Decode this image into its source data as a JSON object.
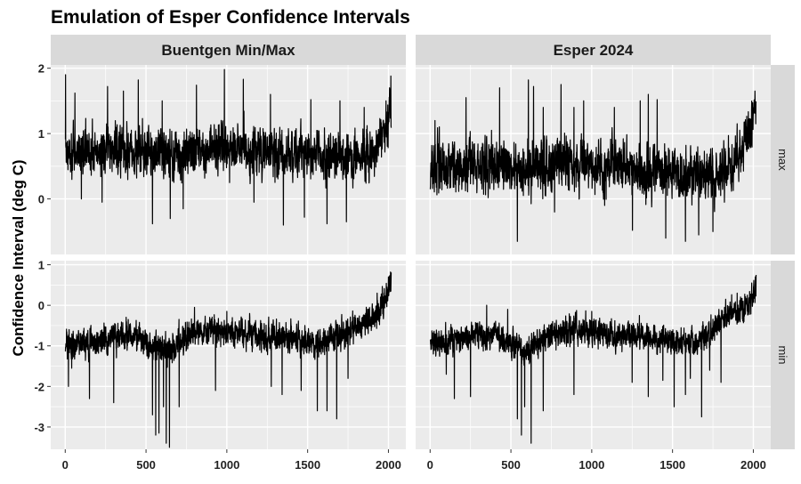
{
  "chart_data": {
    "type": "line",
    "title": "Emulation of Esper Confidence Intervals",
    "xlabel": "",
    "ylabel": "Confidence Interval (deg C)",
    "facet_columns": [
      "Buentgen Min/Max",
      "Esper 2024"
    ],
    "facet_rows": [
      "max",
      "min"
    ],
    "grid": true,
    "colors": {
      "panel": "#ebebeb",
      "grid": "#ffffff",
      "strip": "#d9d9d9",
      "line": "#000000"
    },
    "x_range": [
      1,
      2017
    ],
    "x_ticks": [
      0,
      500,
      1000,
      1500,
      2000
    ],
    "rows": [
      {
        "strip": "max",
        "ylim": [
          -0.85,
          2.05
        ],
        "y_ticks": [
          0,
          1,
          2
        ]
      },
      {
        "strip": "min",
        "ylim": [
          -3.55,
          1.1
        ],
        "y_ticks": [
          -3,
          -2,
          -1,
          0,
          1
        ]
      }
    ],
    "panels": [
      {
        "column": "Buentgen Min/Max",
        "row": "max",
        "mean": [
          [
            1,
            0.75
          ],
          [
            150,
            0.72
          ],
          [
            300,
            0.8
          ],
          [
            500,
            0.72
          ],
          [
            700,
            0.68
          ],
          [
            900,
            0.74
          ],
          [
            1000,
            0.82
          ],
          [
            1200,
            0.76
          ],
          [
            1400,
            0.68
          ],
          [
            1600,
            0.62
          ],
          [
            1800,
            0.65
          ],
          [
            1900,
            0.7
          ],
          [
            1950,
            0.82
          ],
          [
            2000,
            1.15
          ],
          [
            2017,
            1.3
          ]
        ],
        "spread": 0.26,
        "extremes": [
          [
            2,
            1.9
          ],
          [
            60,
            1.62
          ],
          [
            100,
            0.0
          ],
          [
            228,
            -0.05
          ],
          [
            262,
            1.72
          ],
          [
            360,
            1.65
          ],
          [
            452,
            1.82
          ],
          [
            540,
            -0.38
          ],
          [
            600,
            1.5
          ],
          [
            650,
            -0.3
          ],
          [
            730,
            -0.15
          ],
          [
            812,
            1.74
          ],
          [
            985,
            1.98
          ],
          [
            1102,
            1.83
          ],
          [
            1168,
            -0.05
          ],
          [
            1270,
            1.6
          ],
          [
            1350,
            -0.4
          ],
          [
            1480,
            -0.28
          ],
          [
            1520,
            1.52
          ],
          [
            1620,
            -0.38
          ],
          [
            1700,
            1.5
          ],
          [
            1740,
            -0.35
          ],
          [
            1850,
            1.4
          ],
          [
            1985,
            1.5
          ],
          [
            2015,
            1.88
          ]
        ]
      },
      {
        "column": "Esper 2024",
        "row": "max",
        "mean": [
          [
            1,
            0.5
          ],
          [
            150,
            0.52
          ],
          [
            300,
            0.5
          ],
          [
            500,
            0.48
          ],
          [
            620,
            0.46
          ],
          [
            800,
            0.55
          ],
          [
            1000,
            0.5
          ],
          [
            1200,
            0.46
          ],
          [
            1400,
            0.42
          ],
          [
            1600,
            0.38
          ],
          [
            1800,
            0.33
          ],
          [
            1870,
            0.45
          ],
          [
            1930,
            0.72
          ],
          [
            1980,
            1.05
          ],
          [
            2017,
            1.45
          ]
        ],
        "spread": 0.28,
        "extremes": [
          [
            2,
            0.2
          ],
          [
            30,
            1.2
          ],
          [
            222,
            1.55
          ],
          [
            380,
            1.05
          ],
          [
            430,
            1.7
          ],
          [
            540,
            -0.65
          ],
          [
            608,
            1.82
          ],
          [
            640,
            1.72
          ],
          [
            700,
            1.4
          ],
          [
            770,
            -0.2
          ],
          [
            810,
            1.75
          ],
          [
            890,
            1.4
          ],
          [
            950,
            1.5
          ],
          [
            1080,
            -0.1
          ],
          [
            1140,
            1.4
          ],
          [
            1252,
            -0.48
          ],
          [
            1300,
            1.5
          ],
          [
            1350,
            1.6
          ],
          [
            1405,
            1.52
          ],
          [
            1458,
            -0.6
          ],
          [
            1580,
            -0.65
          ],
          [
            1662,
            -0.55
          ],
          [
            1750,
            -0.5
          ],
          [
            1900,
            1.15
          ],
          [
            2010,
            1.65
          ]
        ]
      },
      {
        "column": "Buentgen Min/Max",
        "row": "min",
        "mean": [
          [
            1,
            -1.0
          ],
          [
            50,
            -0.95
          ],
          [
            150,
            -0.9
          ],
          [
            250,
            -0.8
          ],
          [
            350,
            -0.75
          ],
          [
            450,
            -0.85
          ],
          [
            520,
            -0.95
          ],
          [
            560,
            -1.1
          ],
          [
            640,
            -1.1
          ],
          [
            720,
            -0.8
          ],
          [
            900,
            -0.65
          ],
          [
            1100,
            -0.7
          ],
          [
            1300,
            -0.8
          ],
          [
            1450,
            -0.85
          ],
          [
            1600,
            -1.0
          ],
          [
            1700,
            -0.75
          ],
          [
            1800,
            -0.5
          ],
          [
            1900,
            -0.3
          ],
          [
            1950,
            -0.1
          ],
          [
            2000,
            0.3
          ],
          [
            2017,
            0.6
          ]
        ],
        "spread": 0.26,
        "extremes": [
          [
            20,
            -2.0
          ],
          [
            40,
            -1.55
          ],
          [
            150,
            -2.3
          ],
          [
            300,
            -2.4
          ],
          [
            390,
            -0.35
          ],
          [
            540,
            -2.7
          ],
          [
            560,
            -3.2
          ],
          [
            580,
            -3.15
          ],
          [
            608,
            -2.5
          ],
          [
            625,
            -3.4
          ],
          [
            645,
            -3.5
          ],
          [
            705,
            -2.5
          ],
          [
            800,
            -0.05
          ],
          [
            930,
            -2.1
          ],
          [
            1000,
            -0.15
          ],
          [
            1275,
            -2.0
          ],
          [
            1342,
            -2.2
          ],
          [
            1460,
            -2.1
          ],
          [
            1560,
            -2.6
          ],
          [
            1620,
            -2.6
          ],
          [
            1680,
            -2.8
          ],
          [
            1750,
            -1.8
          ],
          [
            1930,
            0.3
          ],
          [
            2000,
            0.7
          ],
          [
            2013,
            0.82
          ]
        ]
      },
      {
        "column": "Esper 2024",
        "row": "min",
        "mean": [
          [
            1,
            -0.9
          ],
          [
            80,
            -0.85
          ],
          [
            200,
            -0.8
          ],
          [
            300,
            -0.7
          ],
          [
            450,
            -0.75
          ],
          [
            520,
            -0.9
          ],
          [
            570,
            -1.1
          ],
          [
            640,
            -1.05
          ],
          [
            720,
            -0.75
          ],
          [
            900,
            -0.6
          ],
          [
            1100,
            -0.7
          ],
          [
            1300,
            -0.8
          ],
          [
            1500,
            -0.9
          ],
          [
            1650,
            -0.9
          ],
          [
            1750,
            -0.55
          ],
          [
            1850,
            -0.25
          ],
          [
            1950,
            0.0
          ],
          [
            2000,
            0.25
          ],
          [
            2017,
            0.45
          ]
        ],
        "spread": 0.25,
        "extremes": [
          [
            20,
            -1.2
          ],
          [
            100,
            -1.7
          ],
          [
            150,
            -2.3
          ],
          [
            250,
            -2.25
          ],
          [
            350,
            -0.0
          ],
          [
            480,
            -0.1
          ],
          [
            540,
            -2.8
          ],
          [
            565,
            -3.2
          ],
          [
            585,
            -2.5
          ],
          [
            625,
            -3.4
          ],
          [
            700,
            -2.6
          ],
          [
            890,
            -2.2
          ],
          [
            1000,
            -0.15
          ],
          [
            1250,
            -1.9
          ],
          [
            1350,
            -2.25
          ],
          [
            1440,
            -1.85
          ],
          [
            1510,
            -2.5
          ],
          [
            1580,
            -2.2
          ],
          [
            1610,
            -1.8
          ],
          [
            1680,
            -2.75
          ],
          [
            1730,
            -1.6
          ],
          [
            1800,
            -1.9
          ],
          [
            1900,
            0.3
          ],
          [
            1990,
            0.55
          ],
          [
            2012,
            0.7
          ]
        ]
      }
    ]
  }
}
